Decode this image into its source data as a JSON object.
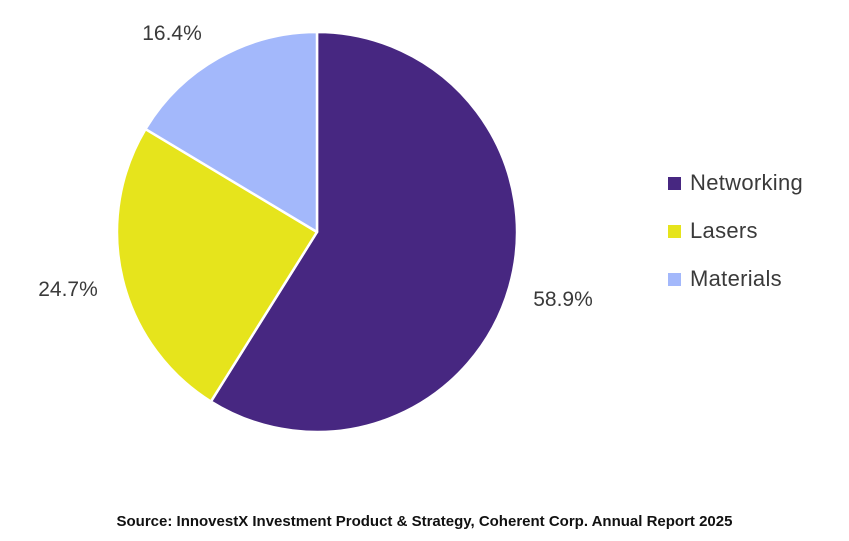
{
  "chart_data": {
    "type": "pie",
    "categories": [
      "Networking",
      "Lasers",
      "Materials"
    ],
    "values": [
      58.9,
      24.7,
      16.4
    ],
    "value_labels": [
      "58.9%",
      "24.7%",
      "16.4%"
    ],
    "colors": [
      "#472781",
      "#e6e41c",
      "#a3b8fb"
    ],
    "legend_position": "right",
    "start_angle": "12 o'clock, clockwise"
  },
  "legend": {
    "items": [
      {
        "label": "Networking",
        "color": "#472781"
      },
      {
        "label": "Lasers",
        "color": "#e6e41c"
      },
      {
        "label": "Materials",
        "color": "#a3b8fb"
      }
    ]
  },
  "source": "Source: InnovestX Investment Product & Strategy, Coherent Corp. Annual Report 2025"
}
